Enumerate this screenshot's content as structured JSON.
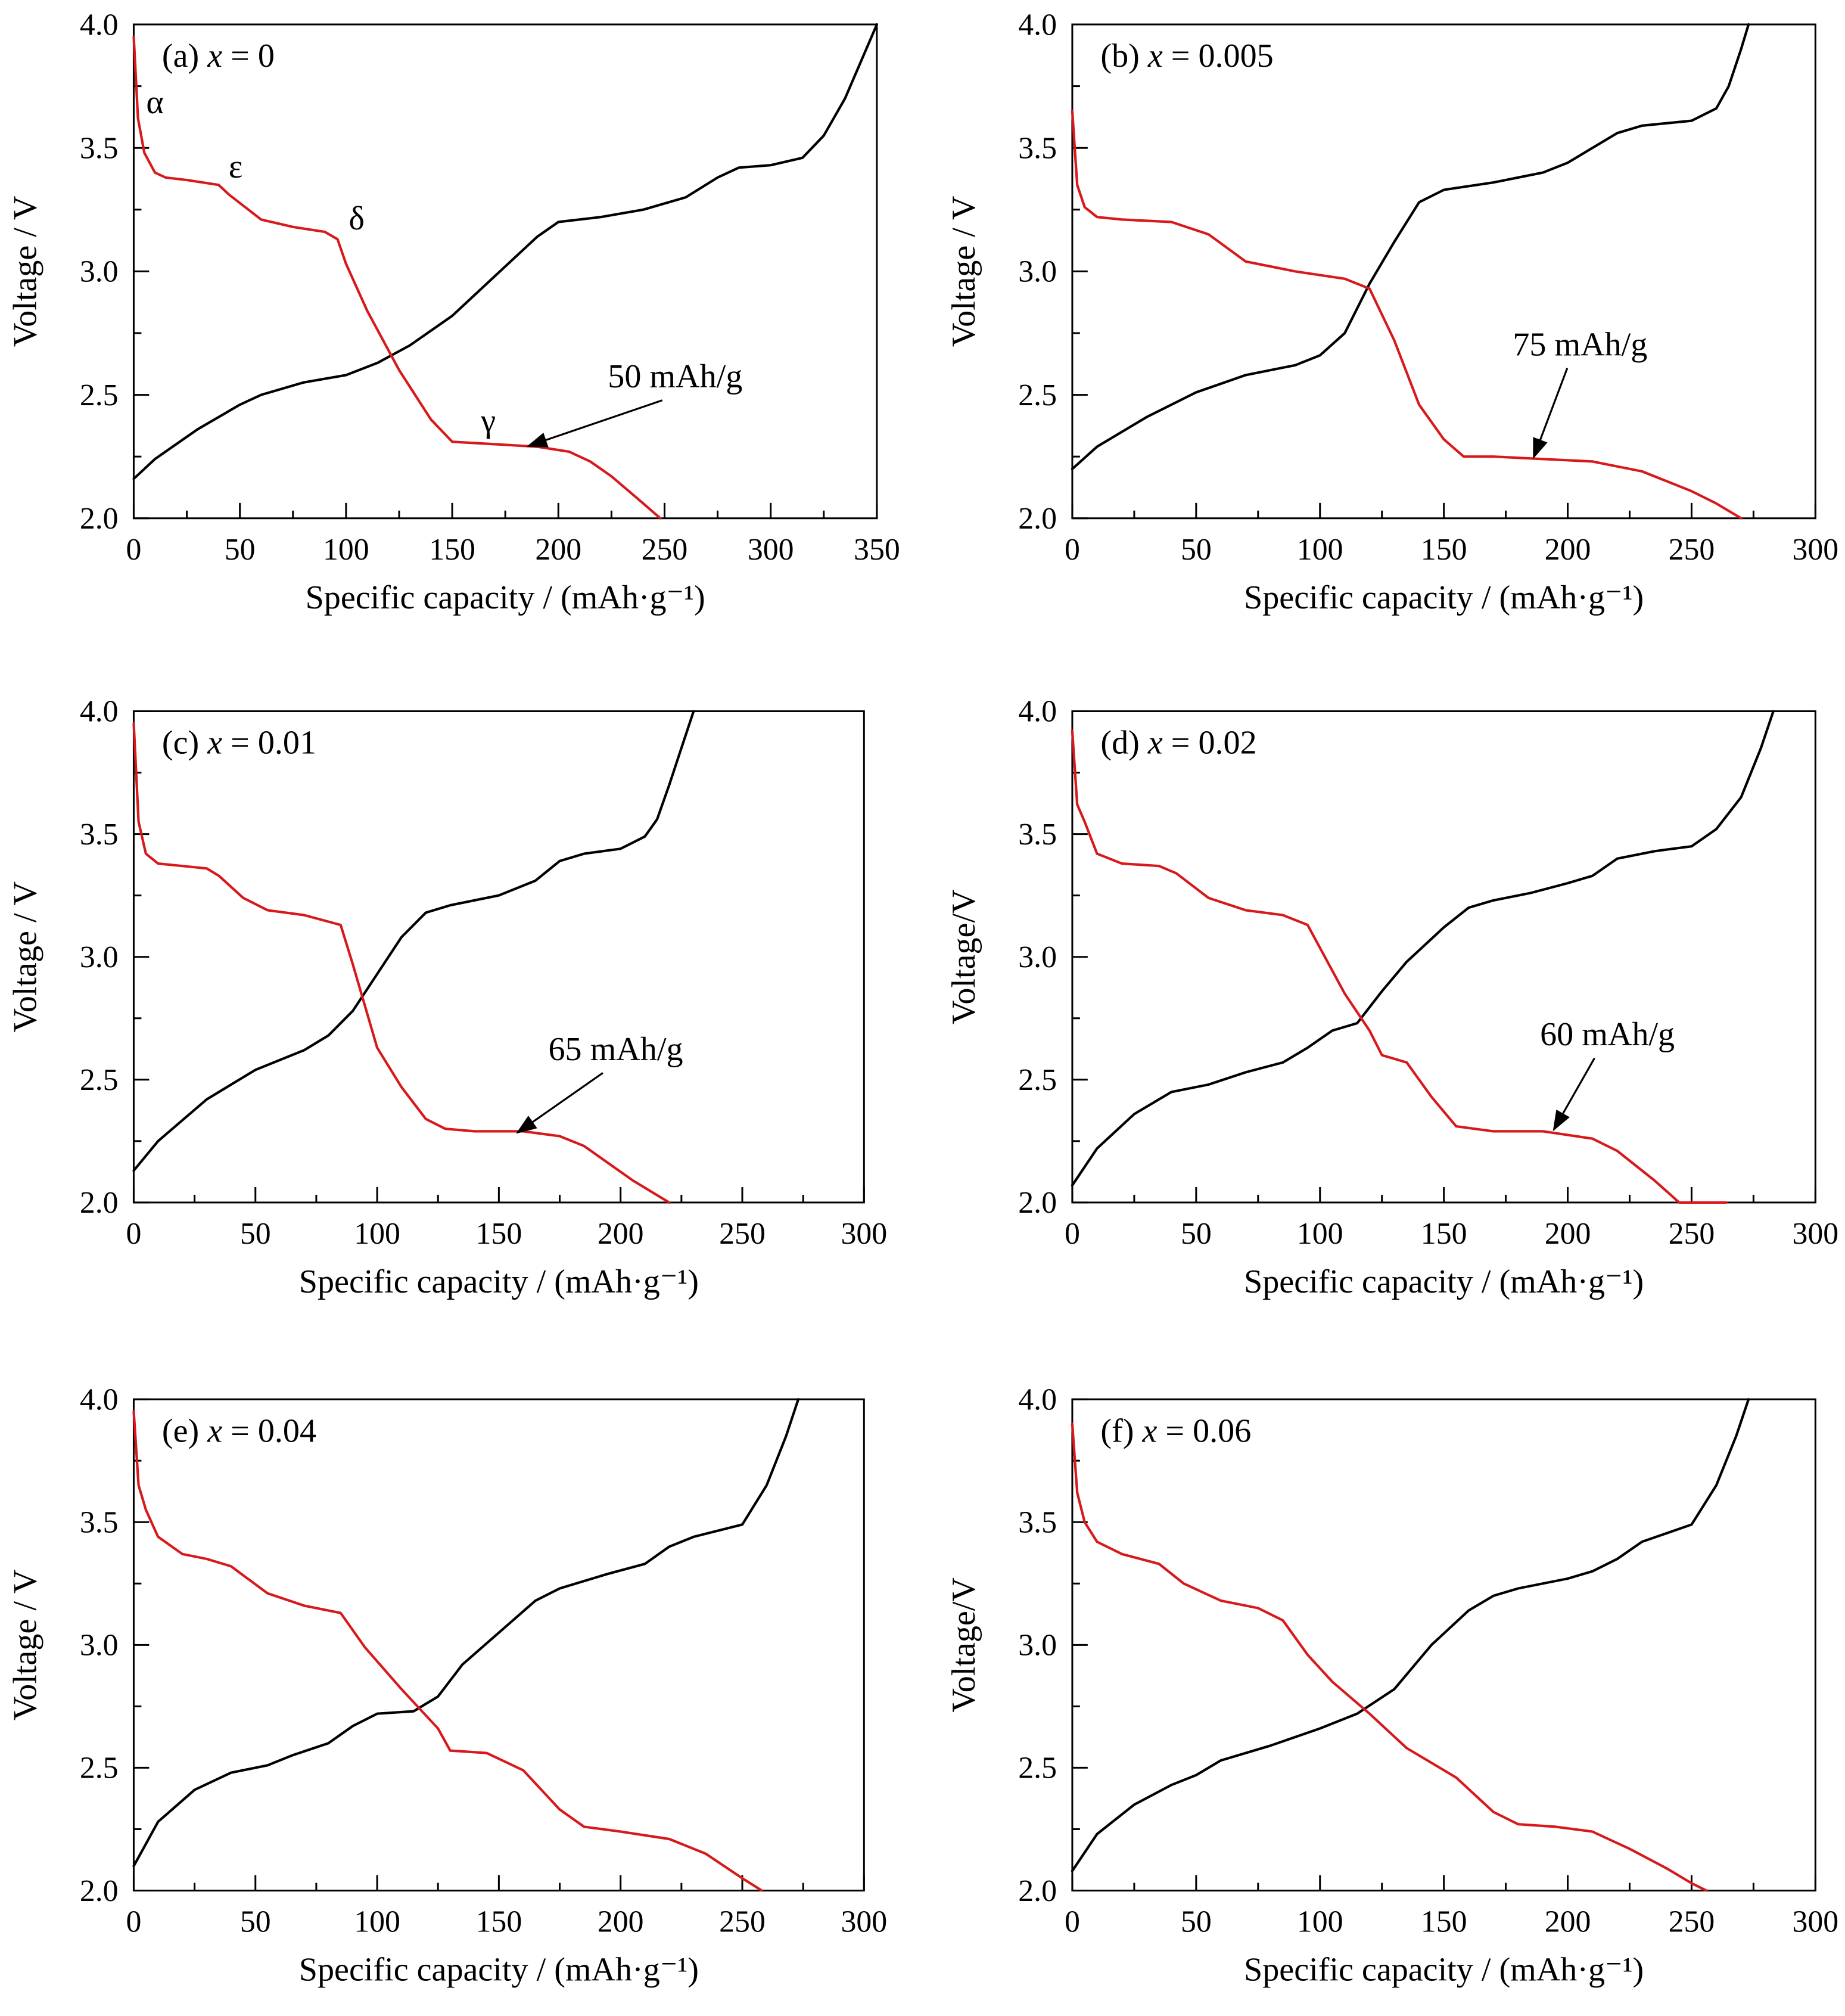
{
  "colors": {
    "charge": "#000000",
    "discharge": "#d7191c",
    "annotation": "#000000"
  },
  "chart_data": [
    {
      "id": "a",
      "type": "line",
      "title": "(a) x = 0",
      "title_prefix": "(a)",
      "title_var": "x",
      "title_eq": "= 0",
      "xlabel": "Specific capacity / (mAh·g⁻¹)",
      "ylabel": "Voltage / V",
      "xlim": [
        0,
        350
      ],
      "ylim": [
        2.0,
        4.0
      ],
      "xticks": [
        0,
        50,
        100,
        150,
        200,
        250,
        300,
        350
      ],
      "yticks": [
        2.0,
        2.5,
        3.0,
        3.5,
        4.0
      ],
      "xtick_labels": [
        "0",
        "50",
        "100",
        "150",
        "200",
        "250",
        "300",
        "350"
      ],
      "ytick_labels": [
        "2.0",
        "2.5",
        "3.0",
        "3.5",
        "4.0"
      ],
      "series": [
        {
          "role": "charge",
          "color": "#000000",
          "x": [
            0,
            10,
            30,
            50,
            60,
            80,
            100,
            115,
            130,
            150,
            170,
            190,
            200,
            220,
            240,
            260,
            275,
            285,
            300,
            315,
            325,
            335,
            345,
            350
          ],
          "y": [
            2.16,
            2.24,
            2.36,
            2.46,
            2.5,
            2.55,
            2.58,
            2.63,
            2.7,
            2.82,
            2.98,
            3.14,
            3.2,
            3.22,
            3.25,
            3.3,
            3.38,
            3.42,
            3.43,
            3.46,
            3.55,
            3.7,
            3.9,
            4.0
          ]
        },
        {
          "role": "discharge",
          "color": "#d7191c",
          "x": [
            0,
            2,
            5,
            10,
            15,
            25,
            40,
            45,
            60,
            75,
            90,
            96,
            100,
            110,
            125,
            140,
            150,
            170,
            190,
            205,
            215,
            225,
            240,
            248
          ],
          "y": [
            3.95,
            3.62,
            3.48,
            3.4,
            3.38,
            3.37,
            3.35,
            3.31,
            3.21,
            3.18,
            3.16,
            3.13,
            3.03,
            2.84,
            2.6,
            2.4,
            2.31,
            2.3,
            2.29,
            2.27,
            2.23,
            2.17,
            2.06,
            2.0
          ]
        }
      ],
      "annotations": [
        {
          "text": "α",
          "x": 10,
          "y": 3.64
        },
        {
          "text": "ε",
          "x": 48,
          "y": 3.38
        },
        {
          "text": "δ",
          "x": 105,
          "y": 3.17
        },
        {
          "text": "γ",
          "x": 167,
          "y": 2.35
        },
        {
          "text": "50 mAh/g",
          "x": 255,
          "y": 2.53,
          "arrow_to": [
            185,
            2.29
          ]
        }
      ]
    },
    {
      "id": "b",
      "type": "line",
      "title": "(b) x = 0.005",
      "title_prefix": "(b)",
      "title_var": "x",
      "title_eq": "= 0.005",
      "xlabel": "Specific capacity / (mAh·g⁻¹)",
      "ylabel": "Voltage / V",
      "xlim": [
        0,
        300
      ],
      "ylim": [
        2.0,
        4.0
      ],
      "xticks": [
        0,
        50,
        100,
        150,
        200,
        250,
        300
      ],
      "yticks": [
        2.0,
        2.5,
        3.0,
        3.5,
        4.0
      ],
      "xtick_labels": [
        "0",
        "50",
        "100",
        "150",
        "200",
        "250",
        "300"
      ],
      "ytick_labels": [
        "2.0",
        "2.5",
        "3.0",
        "3.5",
        "4.0"
      ],
      "series": [
        {
          "role": "charge",
          "color": "#000000",
          "x": [
            0,
            10,
            30,
            50,
            70,
            90,
            100,
            110,
            120,
            130,
            140,
            150,
            170,
            190,
            200,
            210,
            220,
            230,
            250,
            260,
            265,
            270,
            273
          ],
          "y": [
            2.2,
            2.29,
            2.41,
            2.51,
            2.58,
            2.62,
            2.66,
            2.75,
            2.95,
            3.12,
            3.28,
            3.33,
            3.36,
            3.4,
            3.44,
            3.5,
            3.56,
            3.59,
            3.61,
            3.66,
            3.75,
            3.9,
            4.0
          ]
        },
        {
          "role": "discharge",
          "color": "#d7191c",
          "x": [
            0,
            2,
            5,
            10,
            20,
            40,
            55,
            70,
            90,
            110,
            120,
            130,
            140,
            150,
            158,
            170,
            190,
            210,
            230,
            250,
            260,
            270
          ],
          "y": [
            3.65,
            3.35,
            3.26,
            3.22,
            3.21,
            3.2,
            3.15,
            3.04,
            3.0,
            2.97,
            2.93,
            2.72,
            2.46,
            2.32,
            2.25,
            2.25,
            2.24,
            2.23,
            2.19,
            2.11,
            2.06,
            2.0
          ]
        }
      ],
      "annotations": [
        {
          "text": "75 mAh/g",
          "x": 205,
          "y": 2.66,
          "arrow_to": [
            186,
            2.24
          ]
        }
      ]
    },
    {
      "id": "c",
      "type": "line",
      "title": "(c) x = 0.01",
      "title_prefix": "(c)",
      "title_var": "x",
      "title_eq": "= 0.01",
      "xlabel": "Specific capacity / (mAh·g⁻¹)",
      "ylabel": "Voltage / V",
      "xlim": [
        0,
        300
      ],
      "ylim": [
        2.0,
        4.0
      ],
      "xticks": [
        0,
        50,
        100,
        150,
        200,
        250,
        300
      ],
      "yticks": [
        2.0,
        2.5,
        3.0,
        3.5,
        4.0
      ],
      "xtick_labels": [
        "0",
        "50",
        "100",
        "150",
        "200",
        "250",
        "300"
      ],
      "ytick_labels": [
        "2.0",
        "2.5",
        "3.0",
        "3.5",
        "4.0"
      ],
      "series": [
        {
          "role": "charge",
          "color": "#000000",
          "x": [
            0,
            10,
            30,
            50,
            70,
            80,
            90,
            100,
            110,
            120,
            130,
            150,
            165,
            175,
            185,
            200,
            210,
            215,
            220,
            225,
            230
          ],
          "y": [
            2.13,
            2.25,
            2.42,
            2.54,
            2.62,
            2.68,
            2.78,
            2.93,
            3.08,
            3.18,
            3.21,
            3.25,
            3.31,
            3.39,
            3.42,
            3.44,
            3.49,
            3.56,
            3.7,
            3.85,
            4.0
          ]
        },
        {
          "role": "discharge",
          "color": "#d7191c",
          "x": [
            0,
            2,
            5,
            10,
            20,
            30,
            35,
            45,
            55,
            70,
            85,
            90,
            100,
            110,
            120,
            128,
            140,
            160,
            175,
            185,
            195,
            205,
            220
          ],
          "y": [
            3.95,
            3.55,
            3.42,
            3.38,
            3.37,
            3.36,
            3.33,
            3.24,
            3.19,
            3.17,
            3.13,
            2.97,
            2.63,
            2.47,
            2.34,
            2.3,
            2.29,
            2.29,
            2.27,
            2.23,
            2.16,
            2.09,
            2.0
          ]
        }
      ],
      "annotations": [
        {
          "text": "65 mAh/g",
          "x": 198,
          "y": 2.58,
          "arrow_to": [
            157,
            2.28
          ]
        }
      ]
    },
    {
      "id": "d",
      "type": "line",
      "title": "(d) x = 0.02",
      "title_prefix": "(d)",
      "title_var": "x",
      "title_eq": "= 0.02",
      "xlabel": "Specific capacity / (mAh·g⁻¹)",
      "ylabel": "Voltage/V",
      "xlim": [
        0,
        300
      ],
      "ylim": [
        2.0,
        4.0
      ],
      "xticks": [
        0,
        50,
        100,
        150,
        200,
        250,
        300
      ],
      "yticks": [
        2.0,
        2.5,
        3.0,
        3.5,
        4.0
      ],
      "xtick_labels": [
        "0",
        "50",
        "100",
        "150",
        "200",
        "250",
        "300"
      ],
      "ytick_labels": [
        "2.0",
        "2.5",
        "3.0",
        "3.5",
        "4.0"
      ],
      "series": [
        {
          "role": "charge",
          "color": "#000000",
          "x": [
            0,
            10,
            25,
            40,
            55,
            70,
            85,
            95,
            105,
            115,
            125,
            135,
            150,
            160,
            170,
            185,
            200,
            210,
            220,
            235,
            250,
            260,
            270,
            278,
            283
          ],
          "y": [
            2.07,
            2.22,
            2.36,
            2.45,
            2.48,
            2.53,
            2.57,
            2.63,
            2.7,
            2.73,
            2.86,
            2.98,
            3.12,
            3.2,
            3.23,
            3.26,
            3.3,
            3.33,
            3.4,
            3.43,
            3.45,
            3.52,
            3.65,
            3.85,
            4.0
          ]
        },
        {
          "role": "discharge",
          "color": "#d7191c",
          "x": [
            0,
            2,
            5,
            10,
            20,
            35,
            42,
            55,
            70,
            85,
            95,
            110,
            120,
            125,
            135,
            145,
            155,
            170,
            190,
            210,
            220,
            235,
            245,
            255,
            264
          ],
          "y": [
            3.92,
            3.62,
            3.55,
            3.42,
            3.38,
            3.37,
            3.34,
            3.24,
            3.19,
            3.17,
            3.13,
            2.85,
            2.7,
            2.6,
            2.57,
            2.43,
            2.31,
            2.29,
            2.29,
            2.26,
            2.21,
            2.09,
            2.0,
            2.0,
            2.0
          ]
        }
      ],
      "annotations": [
        {
          "text": "60 mAh/g",
          "x": 216,
          "y": 2.64,
          "arrow_to": [
            194,
            2.29
          ]
        }
      ]
    },
    {
      "id": "e",
      "type": "line",
      "title": "(e) x = 0.04",
      "title_prefix": "(e)",
      "title_var": "x",
      "title_eq": "= 0.04",
      "xlabel": "Specific capacity / (mAh·g⁻¹)",
      "ylabel": "Voltage / V",
      "xlim": [
        0,
        300
      ],
      "ylim": [
        2.0,
        4.0
      ],
      "xticks": [
        0,
        50,
        100,
        150,
        200,
        250,
        300
      ],
      "yticks": [
        2.0,
        2.5,
        3.0,
        3.5,
        4.0
      ],
      "xtick_labels": [
        "0",
        "50",
        "100",
        "150",
        "200",
        "250",
        "300"
      ],
      "ytick_labels": [
        "2.0",
        "2.5",
        "3.0",
        "3.5",
        "4.0"
      ],
      "series": [
        {
          "role": "charge",
          "color": "#000000",
          "x": [
            0,
            10,
            25,
            40,
            55,
            65,
            80,
            90,
            100,
            115,
            125,
            135,
            150,
            165,
            175,
            195,
            210,
            220,
            230,
            250,
            260,
            268,
            273
          ],
          "y": [
            2.1,
            2.28,
            2.41,
            2.48,
            2.51,
            2.55,
            2.6,
            2.67,
            2.72,
            2.73,
            2.79,
            2.92,
            3.05,
            3.18,
            3.23,
            3.29,
            3.33,
            3.4,
            3.44,
            3.49,
            3.65,
            3.85,
            4.0
          ]
        },
        {
          "role": "discharge",
          "color": "#d7191c",
          "x": [
            0,
            2,
            5,
            10,
            20,
            30,
            40,
            55,
            70,
            85,
            95,
            110,
            125,
            130,
            145,
            160,
            175,
            185,
            200,
            220,
            235,
            250,
            258
          ],
          "y": [
            3.95,
            3.65,
            3.55,
            3.44,
            3.37,
            3.35,
            3.32,
            3.21,
            3.16,
            3.13,
            2.99,
            2.82,
            2.66,
            2.57,
            2.56,
            2.49,
            2.33,
            2.26,
            2.24,
            2.21,
            2.15,
            2.05,
            2.0
          ]
        }
      ],
      "annotations": []
    },
    {
      "id": "f",
      "type": "line",
      "title": "(f) x = 0.06",
      "title_prefix": "(f)",
      "title_var": "x",
      "title_eq": "= 0.06",
      "xlabel": "Specific capacity / (mAh·g⁻¹)",
      "ylabel": "Voltage/V",
      "xlim": [
        0,
        300
      ],
      "ylim": [
        2.0,
        4.0
      ],
      "xticks": [
        0,
        50,
        100,
        150,
        200,
        250,
        300
      ],
      "yticks": [
        2.0,
        2.5,
        3.0,
        3.5,
        4.0
      ],
      "xtick_labels": [
        "0",
        "50",
        "100",
        "150",
        "200",
        "250",
        "300"
      ],
      "ytick_labels": [
        "2.0",
        "2.5",
        "3.0",
        "3.5",
        "4.0"
      ],
      "series": [
        {
          "role": "charge",
          "color": "#000000",
          "x": [
            0,
            10,
            25,
            40,
            50,
            60,
            80,
            100,
            115,
            130,
            145,
            160,
            170,
            180,
            200,
            210,
            220,
            230,
            250,
            260,
            268,
            273
          ],
          "y": [
            2.08,
            2.23,
            2.35,
            2.43,
            2.47,
            2.53,
            2.59,
            2.66,
            2.72,
            2.82,
            3.0,
            3.14,
            3.2,
            3.23,
            3.27,
            3.3,
            3.35,
            3.42,
            3.49,
            3.65,
            3.85,
            4.0
          ]
        },
        {
          "role": "discharge",
          "color": "#d7191c",
          "x": [
            0,
            2,
            5,
            10,
            20,
            35,
            45,
            60,
            75,
            85,
            95,
            105,
            120,
            135,
            155,
            170,
            180,
            195,
            210,
            225,
            240,
            250,
            256
          ],
          "y": [
            3.9,
            3.62,
            3.5,
            3.42,
            3.37,
            3.33,
            3.25,
            3.18,
            3.15,
            3.1,
            2.96,
            2.85,
            2.72,
            2.58,
            2.46,
            2.32,
            2.27,
            2.26,
            2.24,
            2.17,
            2.09,
            2.03,
            2.0
          ]
        }
      ],
      "annotations": []
    }
  ]
}
